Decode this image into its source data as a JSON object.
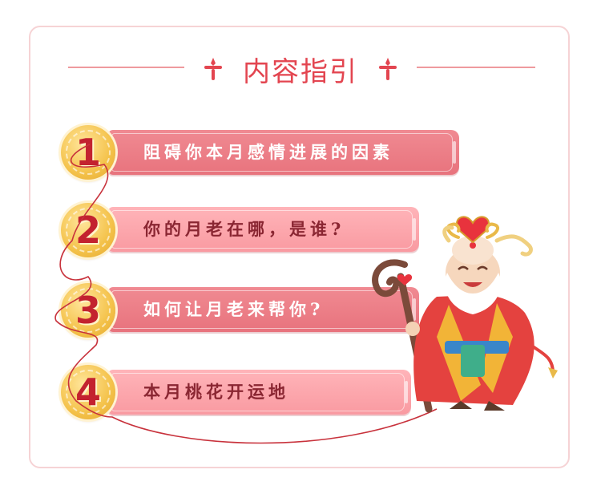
{
  "header": {
    "title": "内容指引"
  },
  "items": [
    {
      "number": "1",
      "label": "阻碍你本月感情进展的因素"
    },
    {
      "number": "2",
      "label": "你的月老在哪，是谁?"
    },
    {
      "number": "3",
      "label": "如何让月老来帮你?"
    },
    {
      "number": "4",
      "label": "本月桃花开运地"
    }
  ],
  "colors": {
    "accent": "#e34550",
    "bar_dark": "#e8737d",
    "bar_light": "#f99aa1",
    "coin": "#f4c24a",
    "thread": "#c8323c"
  }
}
